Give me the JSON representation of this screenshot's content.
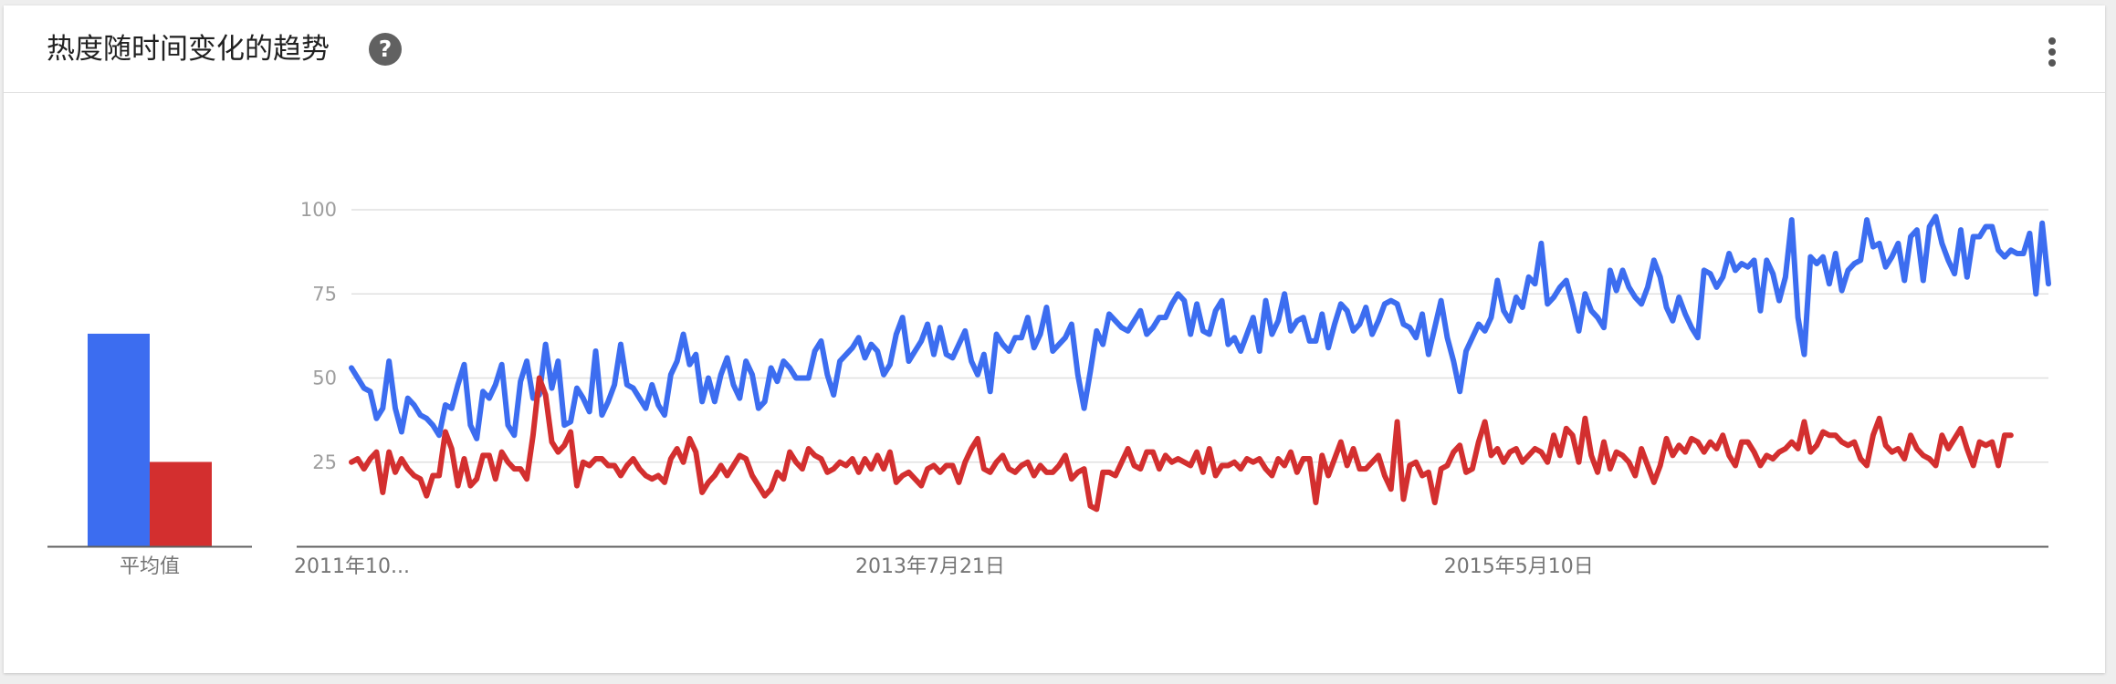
{
  "header": {
    "title": "热度随时间变化的趋势",
    "help_glyph": "?",
    "help_icon": "help-circle-icon",
    "more_icon": "more-vertical-icon"
  },
  "colors": {
    "series_1": "#3c6df0",
    "series_2": "#d32f2f",
    "grid": "#e0e0e0",
    "axis": "#9e9e9e"
  },
  "chart_data": [
    {
      "type": "bar",
      "categories": [
        "平均值"
      ],
      "series": [
        {
          "values": [
            63
          ]
        },
        {
          "values": [
            25
          ]
        }
      ],
      "ylim": [
        0,
        100
      ]
    },
    {
      "type": "line",
      "x_tick_labels": [
        "2011年10...",
        "2013年7月21日",
        "2015年5月10日"
      ],
      "x_tick_positions": [
        0,
        93,
        187
      ],
      "yticks": [
        25,
        50,
        75,
        100
      ],
      "ylim": [
        0,
        100
      ],
      "grid": true,
      "x": "weekly index 0–268",
      "series": [
        {
          "values": [
            53,
            50,
            47,
            46,
            38,
            41,
            55,
            41,
            34,
            44,
            42,
            39,
            38,
            36,
            33,
            42,
            41,
            48,
            54,
            36,
            32,
            46,
            44,
            48,
            54,
            36,
            33,
            49,
            55,
            44,
            45,
            60,
            47,
            55,
            36,
            37,
            47,
            44,
            40,
            58,
            39,
            43,
            48,
            60,
            48,
            47,
            44,
            41,
            48,
            42,
            39,
            51,
            55,
            63,
            54,
            57,
            43,
            50,
            43,
            51,
            56,
            48,
            44,
            55,
            51,
            41,
            43,
            53,
            49,
            55,
            53,
            50,
            50,
            50,
            58,
            61,
            51,
            45,
            55,
            57,
            59,
            62,
            56,
            60,
            58,
            51,
            54,
            63,
            68,
            55,
            58,
            61,
            66,
            57,
            65,
            57,
            56,
            60,
            64,
            55,
            51,
            57,
            46,
            63,
            60,
            58,
            62,
            62,
            68,
            59,
            63,
            71,
            58,
            60,
            62,
            66,
            51,
            41,
            52,
            64,
            60,
            69,
            67,
            65,
            64,
            67,
            70,
            63,
            65,
            68,
            68,
            72,
            75,
            73,
            63,
            72,
            64,
            63,
            70,
            73,
            60,
            62,
            58,
            63,
            68,
            58,
            73,
            63,
            67,
            75,
            64,
            67,
            68,
            61,
            61,
            69,
            59,
            66,
            72,
            70,
            64,
            66,
            71,
            63,
            67,
            72,
            73,
            72,
            66,
            65,
            62,
            69,
            57,
            65,
            73,
            62,
            55,
            46,
            58,
            62,
            66,
            64,
            68,
            79,
            70,
            67,
            74,
            71,
            80,
            78,
            90,
            72,
            74,
            77,
            79,
            72,
            64,
            75,
            70,
            68,
            65,
            82,
            76,
            82,
            77,
            74,
            72,
            77,
            85,
            80,
            71,
            67,
            74,
            69,
            65,
            62,
            82,
            81,
            77,
            80,
            87,
            82,
            84,
            83,
            85,
            70,
            85,
            81,
            73,
            80,
            97,
            68,
            57,
            86,
            84,
            86,
            78,
            87,
            76,
            82,
            84,
            85,
            97,
            89,
            90,
            83,
            86,
            90,
            79,
            92,
            94,
            79,
            95,
            98,
            90,
            85,
            81,
            94,
            80,
            92,
            92,
            95,
            95,
            88,
            86,
            88,
            87,
            87,
            93,
            75,
            96,
            78
          ]
        },
        {
          "values": [
            25,
            26,
            23,
            26,
            28,
            16,
            28,
            22,
            26,
            23,
            21,
            20,
            15,
            21,
            21,
            34,
            29,
            18,
            26,
            18,
            20,
            27,
            27,
            20,
            28,
            25,
            23,
            23,
            20,
            33,
            50,
            45,
            31,
            28,
            30,
            34,
            18,
            25,
            24,
            26,
            26,
            24,
            24,
            21,
            24,
            26,
            23,
            21,
            20,
            21,
            19,
            26,
            29,
            25,
            32,
            28,
            16,
            19,
            21,
            24,
            21,
            24,
            27,
            26,
            21,
            18,
            15,
            17,
            22,
            20,
            28,
            25,
            23,
            29,
            27,
            26,
            22,
            23,
            25,
            24,
            26,
            22,
            26,
            23,
            27,
            23,
            28,
            19,
            21,
            22,
            20,
            18,
            23,
            24,
            22,
            24,
            24,
            19,
            25,
            29,
            32,
            23,
            22,
            25,
            27,
            23,
            22,
            24,
            25,
            21,
            24,
            22,
            22,
            24,
            27,
            20,
            22,
            23,
            12,
            11,
            22,
            22,
            21,
            25,
            29,
            24,
            23,
            28,
            28,
            23,
            27,
            25,
            26,
            25,
            24,
            28,
            22,
            29,
            21,
            24,
            24,
            25,
            23,
            26,
            25,
            26,
            23,
            21,
            26,
            24,
            28,
            22,
            26,
            26,
            13,
            27,
            21,
            26,
            31,
            24,
            29,
            23,
            23,
            25,
            27,
            21,
            17,
            37,
            14,
            24,
            25,
            21,
            22,
            13,
            23,
            24,
            28,
            30,
            22,
            23,
            31,
            37,
            27,
            29,
            25,
            28,
            29,
            25,
            27,
            29,
            28,
            25,
            33,
            27,
            35,
            33,
            25,
            38,
            27,
            22,
            31,
            23,
            28,
            27,
            25,
            21,
            29,
            24,
            19,
            24,
            32,
            27,
            30,
            28,
            32,
            31,
            28,
            31,
            29,
            33,
            27,
            24,
            31,
            31,
            28,
            24,
            27,
            26,
            28,
            29,
            31,
            29,
            37,
            28,
            30,
            34,
            33,
            33,
            31,
            30,
            31,
            26,
            24,
            33,
            38,
            30,
            28,
            29,
            26,
            33,
            29,
            27,
            26,
            24,
            33,
            29,
            32,
            35,
            29,
            24,
            31,
            30,
            31,
            24,
            33,
            33
          ]
        }
      ]
    }
  ]
}
